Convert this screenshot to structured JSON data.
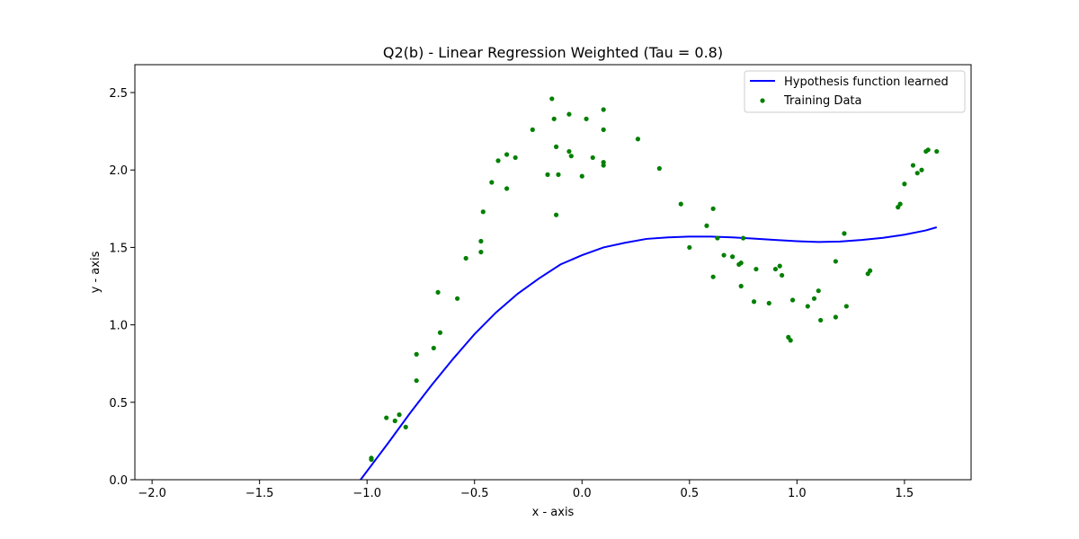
{
  "colors": {
    "background": "#ffffff",
    "axes": "#000000",
    "hypothesis_line": "#0000ff",
    "training_points": "#008000"
  },
  "chart_data": {
    "type": "scatter",
    "title": "Q2(b) - Linear Regression Weighted (Tau = 0.8)",
    "xlabel": "x - axis",
    "ylabel": "y - axis",
    "xlim": [
      -2.08,
      1.81
    ],
    "ylim": [
      0,
      2.68
    ],
    "x_ticks": [
      -2.0,
      -1.5,
      -1.0,
      -0.5,
      0.0,
      0.5,
      1.0,
      1.5
    ],
    "x_tick_labels": [
      "−2.0",
      "−1.5",
      "−1.0",
      "−0.5",
      "0.0",
      "0.5",
      "1.0",
      "1.5"
    ],
    "y_ticks": [
      0.0,
      0.5,
      1.0,
      1.5,
      2.0,
      2.5
    ],
    "y_tick_labels": [
      "0.0",
      "0.5",
      "1.0",
      "1.5",
      "2.0",
      "2.5"
    ],
    "grid": false,
    "legend_position": "top-right",
    "series": [
      {
        "name": "Hypothesis function learned",
        "kind": "line",
        "color": "#0000ff",
        "x": [
          -1.03,
          -0.9,
          -0.8,
          -0.7,
          -0.6,
          -0.5,
          -0.4,
          -0.3,
          -0.2,
          -0.1,
          0.0,
          0.1,
          0.2,
          0.3,
          0.4,
          0.5,
          0.6,
          0.7,
          0.8,
          0.9,
          1.0,
          1.1,
          1.2,
          1.3,
          1.4,
          1.5,
          1.6,
          1.65
        ],
        "y": [
          0.0,
          0.24,
          0.43,
          0.61,
          0.78,
          0.94,
          1.08,
          1.2,
          1.3,
          1.39,
          1.45,
          1.5,
          1.53,
          1.555,
          1.565,
          1.57,
          1.57,
          1.565,
          1.557,
          1.548,
          1.54,
          1.535,
          1.538,
          1.548,
          1.562,
          1.582,
          1.61,
          1.63
        ]
      },
      {
        "name": "Training Data",
        "kind": "scatter",
        "color": "#008000",
        "x": [
          -0.98,
          -0.98,
          -0.91,
          -0.87,
          -0.85,
          -0.82,
          -0.77,
          -0.77,
          -0.69,
          -0.67,
          -0.66,
          -0.58,
          -0.54,
          -0.47,
          -0.47,
          -0.46,
          -0.42,
          -0.39,
          -0.35,
          -0.35,
          -0.31,
          -0.23,
          -0.16,
          -0.14,
          -0.13,
          -0.12,
          -0.12,
          -0.11,
          -0.06,
          -0.06,
          -0.05,
          0.0,
          0.02,
          0.05,
          0.1,
          0.1,
          0.1,
          0.1,
          0.26,
          0.36,
          0.46,
          0.5,
          0.58,
          0.61,
          0.61,
          0.63,
          0.66,
          0.7,
          0.73,
          0.74,
          0.74,
          0.75,
          0.8,
          0.81,
          0.87,
          0.9,
          0.92,
          0.93,
          0.96,
          0.97,
          0.98,
          1.05,
          1.08,
          1.1,
          1.11,
          1.18,
          1.18,
          1.22,
          1.23,
          1.33,
          1.34,
          1.47,
          1.48,
          1.5,
          1.54,
          1.56,
          1.58,
          1.6,
          1.61,
          1.65
        ],
        "y": [
          0.13,
          0.14,
          0.4,
          0.38,
          0.42,
          0.34,
          0.81,
          0.64,
          0.85,
          1.21,
          0.95,
          1.17,
          1.43,
          1.47,
          1.54,
          1.73,
          1.92,
          2.06,
          2.1,
          1.88,
          2.08,
          2.26,
          1.97,
          2.46,
          2.33,
          2.15,
          1.71,
          1.97,
          2.36,
          2.12,
          2.09,
          1.96,
          2.33,
          2.08,
          2.39,
          2.26,
          2.05,
          2.03,
          2.2,
          2.01,
          1.78,
          1.5,
          1.64,
          1.75,
          1.31,
          1.56,
          1.45,
          1.44,
          1.39,
          1.25,
          1.4,
          1.56,
          1.15,
          1.36,
          1.14,
          1.36,
          1.38,
          1.32,
          0.92,
          0.9,
          1.16,
          1.12,
          1.17,
          1.22,
          1.03,
          1.05,
          1.41,
          1.59,
          1.12,
          1.33,
          1.35,
          1.76,
          1.78,
          1.91,
          2.03,
          1.98,
          2.0,
          2.12,
          2.13,
          2.12
        ]
      }
    ]
  }
}
